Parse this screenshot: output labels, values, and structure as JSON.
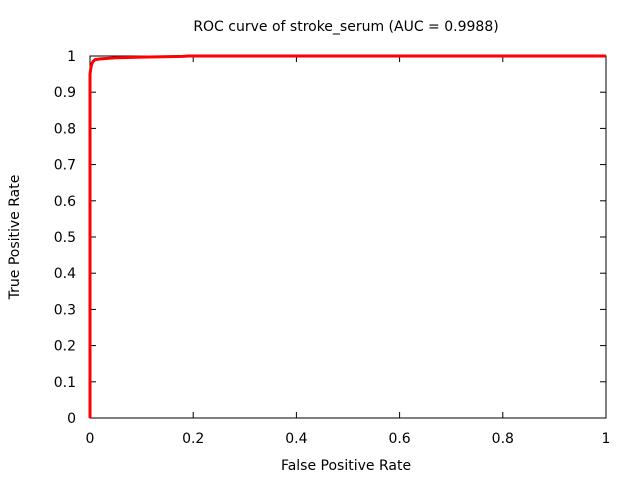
{
  "chart_data": {
    "type": "line",
    "title": "ROC curve of stroke_serum (AUC = 0.9988)",
    "xlabel": "False Positive Rate",
    "ylabel": "True Positive Rate",
    "xlim": [
      0,
      1
    ],
    "ylim": [
      0,
      1
    ],
    "xticks": [
      "0",
      "0.2",
      "0.4",
      "0.6",
      "0.8",
      "1"
    ],
    "yticks": [
      "0",
      "0.1",
      "0.2",
      "0.3",
      "0.4",
      "0.5",
      "0.6",
      "0.7",
      "0.8",
      "0.9",
      "1"
    ],
    "grid": false,
    "legend": "none",
    "line_color": "#ff0000",
    "series": [
      {
        "x": [
          0,
          0.0,
          0.0,
          0.0,
          0.002,
          0.004,
          0.006,
          0.01,
          0.02,
          0.05,
          0.1,
          0.18,
          0.19,
          1.0
        ],
        "y": [
          0,
          0.5,
          0.9,
          0.95,
          0.97,
          0.98,
          0.985,
          0.99,
          0.992,
          0.995,
          0.997,
          0.999,
          1.0,
          1.0
        ]
      }
    ]
  }
}
